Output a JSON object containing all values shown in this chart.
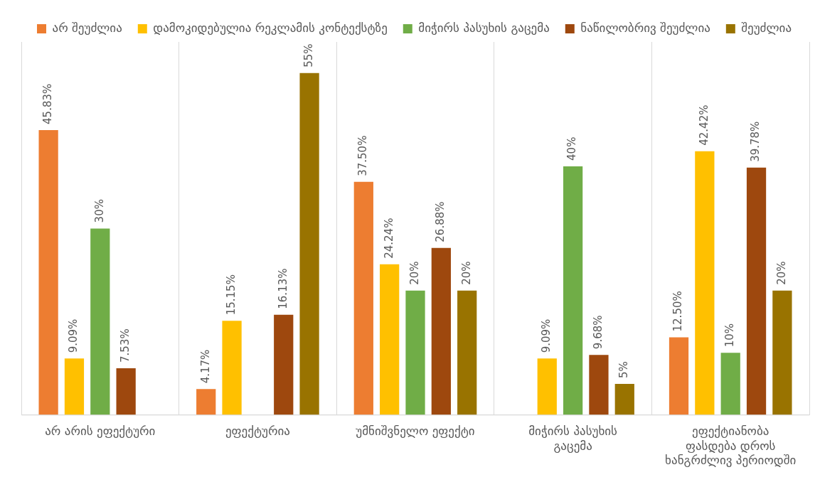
{
  "chart_data": {
    "type": "bar",
    "categories": [
      "არ არის ეფექტური",
      "ეფექტურია",
      "უმნიშვნელო ეფექტი",
      "მიჭირს პასუხის გაცემა",
      "ეფექტიანობა ფასდება დროს ხანგრძლივ პერიოდში"
    ],
    "series": [
      {
        "name": "არ შეუძლია",
        "color": "#ed7d31",
        "values": [
          45.83,
          4.17,
          37.5,
          null,
          12.5
        ],
        "value_labels": [
          "45.83%",
          "4.17%",
          "37.50%",
          null,
          "12.50%"
        ]
      },
      {
        "name": "დამოკიდებულია რეკლამის კონტექსტზე",
        "color": "#ffc000",
        "values": [
          9.09,
          15.15,
          24.24,
          9.09,
          42.42
        ],
        "value_labels": [
          "9.09%",
          "15.15%",
          "24.24%",
          "9.09%",
          "42.42%"
        ]
      },
      {
        "name": "მიჭირს პასუხის გაცემა",
        "color": "#70ad47",
        "values": [
          30,
          null,
          20,
          40,
          10
        ],
        "value_labels": [
          "30%",
          null,
          "20%",
          "40%",
          "10%"
        ]
      },
      {
        "name": "ნაწილობრივ შეუძლია",
        "color": "#9e480e",
        "values": [
          7.53,
          16.13,
          26.88,
          9.68,
          39.78
        ],
        "value_labels": [
          "7.53%",
          "16.13%",
          "26.88%",
          "9.68%",
          "39.78%"
        ]
      },
      {
        "name": "შეუძლია",
        "color": "#997300",
        "values": [
          null,
          55,
          20,
          5,
          20
        ],
        "value_labels": [
          null,
          "55%",
          "20%",
          "5%",
          "20%"
        ]
      }
    ],
    "grid": "x",
    "legend": "top left"
  }
}
